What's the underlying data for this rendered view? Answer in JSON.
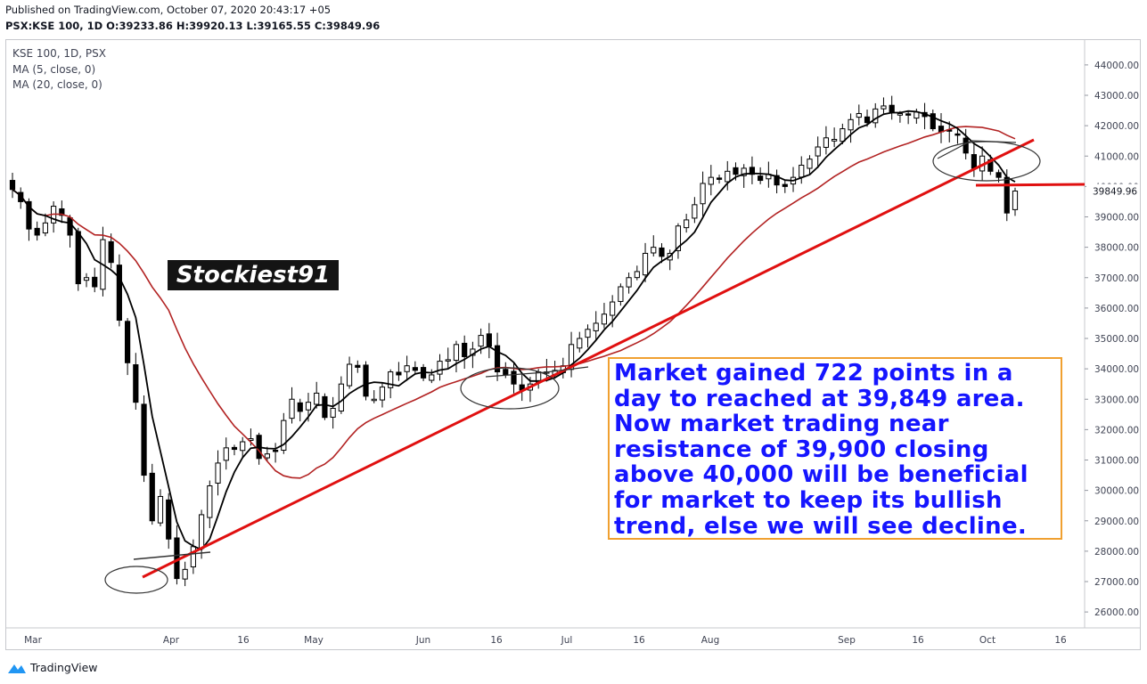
{
  "header": {
    "published": "Published on TradingView.com, October 07, 2020 20:43:17 +05",
    "ohlc": "PSX:KSE 100, 1D O:39233.86 H:39920.13 L:39165.55 C:39849.96"
  },
  "legend": [
    "KSE 100, 1D, PSX",
    "MA (5, close, 0)",
    "MA (20, close, 0)"
  ],
  "watermark": "Stockiest91",
  "note": "Market gained 722 points in a\nday to reached at 39,849 area.\nNow market trading near\nresistance of 39,900 closing\nabove 40,000 will be beneficial\nfor market to keep its bullish\ntrend, else we will see decline.",
  "footer": {
    "brand": "TradingView"
  },
  "colors": {
    "up": "#ffffff",
    "down": "#000000",
    "ma5": "#000000",
    "ma20": "#b22222",
    "trendline": "#e01010",
    "note_text": "#1515ff",
    "note_border": "#f0a030"
  },
  "chart_data": {
    "type": "candlestick",
    "symbol": "PSX:KSE 100",
    "interval": "1D",
    "y_ticks": [
      26000,
      27000,
      28000,
      29000,
      30000,
      31000,
      32000,
      33000,
      34000,
      35000,
      36000,
      37000,
      38000,
      39000,
      40000,
      41000,
      42000,
      43000,
      44000
    ],
    "y_tick_labels": [
      "26000.00",
      "27000.00",
      "28000.00",
      "29000.00",
      "30000.00",
      "31000.00",
      "32000.00",
      "33000.00",
      "34000.00",
      "35000.00",
      "36000.00",
      "37000.00",
      "38000.00",
      "39000.00",
      "40000.00",
      "41000.00",
      "42000.00",
      "43000.00",
      "44000.00"
    ],
    "last_price_label": "39849.96",
    "last_price": 39849.96,
    "x_tick_labels": [
      "Mar",
      "Apr",
      "16",
      "May",
      "Jun",
      "16",
      "Jul",
      "16",
      "Aug",
      "Sep",
      "16",
      "Oct",
      "16"
    ],
    "ylim": [
      25600,
      44600
    ],
    "closes": [
      39900,
      39500,
      38600,
      38400,
      38800,
      39350,
      39050,
      38400,
      36800,
      37000,
      36700,
      38250,
      37500,
      35600,
      34200,
      32900,
      30500,
      29000,
      29800,
      28400,
      27100,
      27400,
      28150,
      29200,
      30150,
      30900,
      31400,
      31350,
      31600,
      31700,
      31050,
      31200,
      31300,
      32300,
      33000,
      32600,
      32900,
      33200,
      32400,
      32700,
      33500,
      34150,
      34050,
      33100,
      33000,
      33400,
      33900,
      33800,
      34100,
      33950,
      33700,
      33800,
      34250,
      34300,
      34800,
      34400,
      34650,
      35100,
      34750,
      33900,
      33800,
      33500,
      33300,
      33500,
      33900,
      33900,
      33950,
      34100,
      34800,
      35000,
      35300,
      35500,
      35800,
      36200,
      36700,
      37000,
      37200,
      37800,
      38000,
      37700,
      37800,
      38700,
      38900,
      39400,
      40100,
      40300,
      40250,
      40500,
      40400,
      40600,
      40400,
      40200,
      40400,
      40050,
      40000,
      40300,
      40700,
      40900,
      41300,
      41600,
      41550,
      41900,
      42200,
      42400,
      42100,
      42550,
      42650,
      42450,
      42400,
      42350,
      42450,
      42300,
      41900,
      41800,
      41850,
      41700,
      41100,
      40600,
      41000,
      40500,
      40300,
      39127,
      39849.96
    ],
    "annotations": [
      "rising trendline",
      "horizontal resistance line",
      "ellipse markings"
    ]
  }
}
